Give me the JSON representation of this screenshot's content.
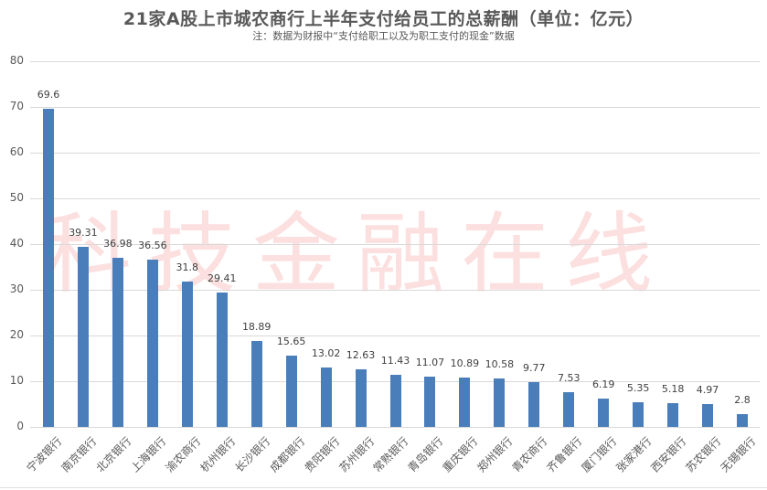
{
  "title": "21家A股上市城农商行上半年支付给员工的总薪酬（单位：亿元）",
  "subtitle": "注：数据为财报中“支付给职工以及为职工支付的现金”数据",
  "watermark": "科技金融在线",
  "colors": {
    "bar": "#4a7ebb",
    "grid": "#d9d9d9",
    "text": "#595959",
    "watermark": "#f58c8c"
  },
  "chart_data": {
    "type": "bar",
    "title": "21家A股上市城农商行上半年支付给员工的总薪酬（单位：亿元）",
    "subtitle": "注：数据为财报中“支付给职工以及为职工支付的现金”数据",
    "xlabel": "",
    "ylabel": "",
    "ylim": [
      0,
      80
    ],
    "yticks": [
      0,
      10,
      20,
      30,
      40,
      50,
      60,
      70,
      80
    ],
    "grid": true,
    "legend": "none",
    "categories": [
      "宁波银行",
      "南京银行",
      "北京银行",
      "上海银行",
      "渝农商行",
      "杭州银行",
      "长沙银行",
      "成都银行",
      "贵阳银行",
      "苏州银行",
      "常熟银行",
      "青岛银行",
      "重庆银行",
      "郑州银行",
      "青农商行",
      "齐鲁银行",
      "厦门银行",
      "张家港行",
      "西安银行",
      "苏农银行",
      "无锡银行"
    ],
    "values": [
      69.6,
      39.31,
      36.98,
      36.56,
      31.8,
      29.41,
      18.89,
      15.65,
      13.02,
      12.63,
      11.43,
      11.07,
      10.89,
      10.58,
      9.77,
      7.53,
      6.19,
      5.35,
      5.18,
      4.97,
      2.8
    ],
    "value_labels": [
      "69.6",
      "39.31",
      "36.98",
      "36.56",
      "31.8",
      "29.41",
      "18.89",
      "15.65",
      "13.02",
      "12.63",
      "11.43",
      "11.07",
      "10.89",
      "10.58",
      "9.77",
      "7.53",
      "6.19",
      "5.35",
      "5.18",
      "4.97",
      "2.8"
    ]
  }
}
